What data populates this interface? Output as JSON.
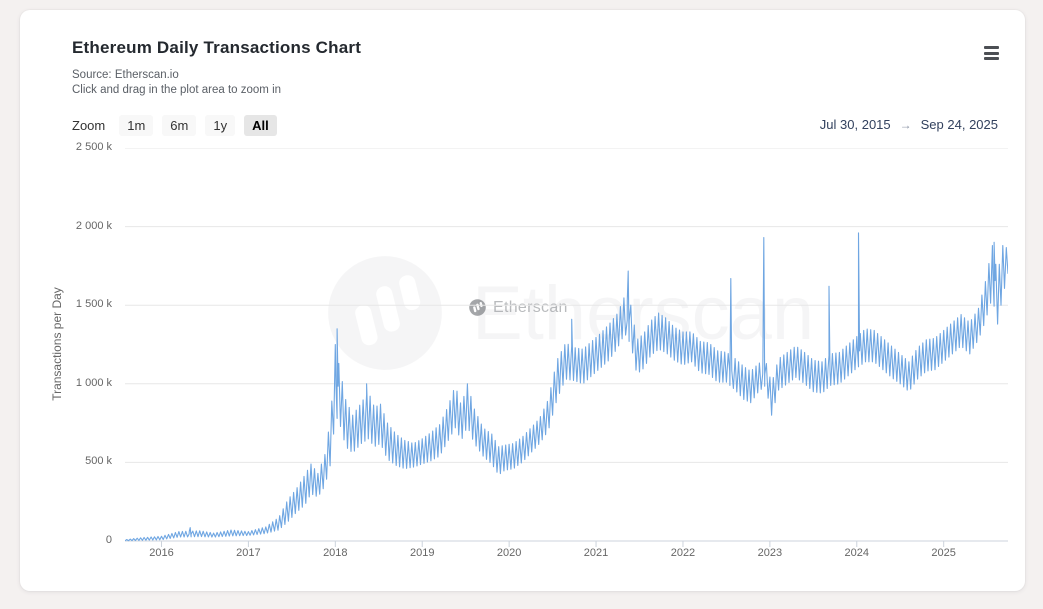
{
  "header": {
    "title": "Ethereum Daily Transactions Chart",
    "source_line": "Source: Etherscan.io",
    "hint_line": "Click and drag in the plot area to zoom in",
    "menu_icon": "hamburger-icon"
  },
  "toolbar": {
    "zoom_label": "Zoom",
    "ranges": [
      {
        "label": "1m",
        "selected": false
      },
      {
        "label": "6m",
        "selected": false
      },
      {
        "label": "1y",
        "selected": false
      },
      {
        "label": "All",
        "selected": true
      }
    ],
    "date_from": "Jul 30, 2015",
    "date_arrow": "→",
    "date_to": "Sep 24, 2025"
  },
  "watermark": {
    "text": "Etherscan",
    "logo": "etherscan-logo"
  },
  "colors": {
    "line": "#6fa6e2",
    "grid": "#e7e7e7",
    "axis": "#ccd3dc",
    "card_bg": "#ffffff",
    "page_bg": "#f4f1f0",
    "date_range_text": "#32415e"
  },
  "chart_data": {
    "type": "line",
    "title": "Ethereum Daily Transactions Chart",
    "subtitle": "Source: Etherscan.io",
    "xlabel": "",
    "ylabel": "Transactions per Day",
    "series_name": "Ethereum Daily Transactions",
    "x_range_dates": [
      "Jul 30, 2015",
      "Sep 24, 2025"
    ],
    "xlim": [
      2015.58,
      2025.74
    ],
    "ylim": [
      0,
      2500
    ],
    "y_unit": "thousand transactions per day",
    "grid": true,
    "legend": false,
    "y_ticks": [
      {
        "v": 0,
        "label": "0"
      },
      {
        "v": 500,
        "label": "500 k"
      },
      {
        "v": 1000,
        "label": "1 000 k"
      },
      {
        "v": 1500,
        "label": "1 500 k"
      },
      {
        "v": 2000,
        "label": "2 000 k"
      },
      {
        "v": 2500,
        "label": "2 500 k"
      }
    ],
    "x_ticks": [
      2016,
      2017,
      2018,
      2019,
      2020,
      2021,
      2022,
      2023,
      2024,
      2025
    ],
    "representation": "envelope entries are [decimal_year, daily_low_k, daily_high_k] read from the plot; spikes are single-day extremes [decimal_year, value_k]",
    "envelope": [
      [
        2015.58,
        1,
        8
      ],
      [
        2015.75,
        4,
        20
      ],
      [
        2016.0,
        8,
        30
      ],
      [
        2016.2,
        25,
        60
      ],
      [
        2016.45,
        28,
        65
      ],
      [
        2016.6,
        25,
        50
      ],
      [
        2016.8,
        32,
        70
      ],
      [
        2017.0,
        35,
        60
      ],
      [
        2017.2,
        48,
        90
      ],
      [
        2017.35,
        70,
        150
      ],
      [
        2017.45,
        120,
        260
      ],
      [
        2017.55,
        180,
        330
      ],
      [
        2017.65,
        230,
        420
      ],
      [
        2017.72,
        300,
        490
      ],
      [
        2017.8,
        280,
        430
      ],
      [
        2017.88,
        350,
        550
      ],
      [
        2017.95,
        500,
        800
      ],
      [
        2018.0,
        800,
        1250
      ],
      [
        2018.05,
        750,
        1100
      ],
      [
        2018.12,
        600,
        900
      ],
      [
        2018.2,
        560,
        800
      ],
      [
        2018.3,
        620,
        880
      ],
      [
        2018.38,
        650,
        950
      ],
      [
        2018.45,
        600,
        850
      ],
      [
        2018.52,
        620,
        870
      ],
      [
        2018.6,
        520,
        750
      ],
      [
        2018.7,
        480,
        680
      ],
      [
        2018.8,
        460,
        640
      ],
      [
        2018.9,
        470,
        620
      ],
      [
        2019.0,
        490,
        650
      ],
      [
        2019.1,
        510,
        690
      ],
      [
        2019.2,
        540,
        740
      ],
      [
        2019.3,
        640,
        860
      ],
      [
        2019.38,
        720,
        990
      ],
      [
        2019.45,
        640,
        860
      ],
      [
        2019.52,
        730,
        1000
      ],
      [
        2019.6,
        620,
        840
      ],
      [
        2019.7,
        540,
        720
      ],
      [
        2019.8,
        490,
        680
      ],
      [
        2019.88,
        420,
        600
      ],
      [
        2019.95,
        450,
        610
      ],
      [
        2020.05,
        460,
        620
      ],
      [
        2020.15,
        500,
        660
      ],
      [
        2020.25,
        560,
        720
      ],
      [
        2020.35,
        620,
        780
      ],
      [
        2020.45,
        700,
        900
      ],
      [
        2020.55,
        900,
        1150
      ],
      [
        2020.65,
        1030,
        1260
      ],
      [
        2020.75,
        1020,
        1230
      ],
      [
        2020.85,
        1000,
        1220
      ],
      [
        2020.95,
        1050,
        1270
      ],
      [
        2021.05,
        1100,
        1320
      ],
      [
        2021.15,
        1150,
        1380
      ],
      [
        2021.25,
        1230,
        1450
      ],
      [
        2021.33,
        1320,
        1560
      ],
      [
        2021.4,
        1250,
        1500
      ],
      [
        2021.47,
        1060,
        1280
      ],
      [
        2021.55,
        1100,
        1320
      ],
      [
        2021.63,
        1180,
        1400
      ],
      [
        2021.72,
        1220,
        1450
      ],
      [
        2021.8,
        1200,
        1420
      ],
      [
        2021.9,
        1150,
        1360
      ],
      [
        2022.0,
        1120,
        1330
      ],
      [
        2022.1,
        1140,
        1330
      ],
      [
        2022.2,
        1070,
        1270
      ],
      [
        2022.3,
        1060,
        1260
      ],
      [
        2022.4,
        1010,
        1210
      ],
      [
        2022.5,
        1010,
        1200
      ],
      [
        2022.6,
        960,
        1160
      ],
      [
        2022.7,
        900,
        1110
      ],
      [
        2022.78,
        880,
        1080
      ],
      [
        2022.87,
        950,
        1130
      ],
      [
        2022.95,
        990,
        1150
      ],
      [
        2023.02,
        800,
        1000
      ],
      [
        2023.1,
        960,
        1160
      ],
      [
        2023.2,
        1000,
        1200
      ],
      [
        2023.3,
        1040,
        1240
      ],
      [
        2023.4,
        1000,
        1200
      ],
      [
        2023.5,
        950,
        1150
      ],
      [
        2023.6,
        940,
        1140
      ],
      [
        2023.7,
        990,
        1190
      ],
      [
        2023.8,
        1000,
        1200
      ],
      [
        2023.9,
        1050,
        1250
      ],
      [
        2024.0,
        1100,
        1300
      ],
      [
        2024.1,
        1140,
        1350
      ],
      [
        2024.2,
        1140,
        1340
      ],
      [
        2024.3,
        1090,
        1290
      ],
      [
        2024.4,
        1040,
        1240
      ],
      [
        2024.5,
        1000,
        1190
      ],
      [
        2024.6,
        950,
        1140
      ],
      [
        2024.7,
        1030,
        1230
      ],
      [
        2024.8,
        1080,
        1280
      ],
      [
        2024.9,
        1090,
        1290
      ],
      [
        2025.0,
        1140,
        1340
      ],
      [
        2025.1,
        1190,
        1390
      ],
      [
        2025.2,
        1240,
        1440
      ],
      [
        2025.3,
        1190,
        1390
      ],
      [
        2025.4,
        1280,
        1480
      ],
      [
        2025.48,
        1400,
        1650
      ],
      [
        2025.56,
        1550,
        1880
      ],
      [
        2025.62,
        1380,
        1700
      ],
      [
        2025.68,
        1560,
        1880
      ],
      [
        2025.74,
        1700,
        1860
      ]
    ],
    "spikes": [
      [
        2016.33,
        85
      ],
      [
        2018.02,
        1350
      ],
      [
        2018.36,
        1000
      ],
      [
        2020.72,
        1410
      ],
      [
        2021.37,
        1717
      ],
      [
        2022.55,
        1670
      ],
      [
        2022.93,
        1930
      ],
      [
        2023.68,
        1620
      ],
      [
        2024.02,
        1960
      ],
      [
        2025.58,
        1900
      ]
    ]
  }
}
